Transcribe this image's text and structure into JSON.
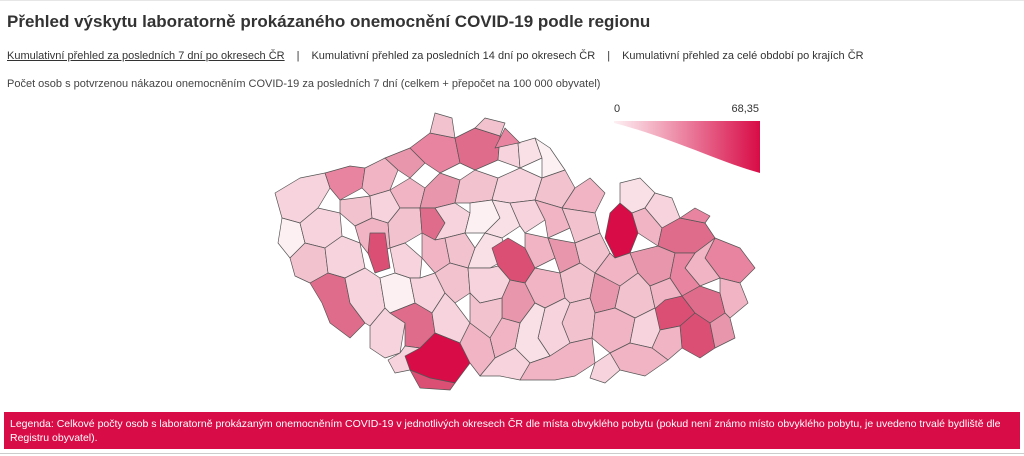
{
  "title": "Přehled výskytu laboratorně prokázaného onemocnění COVID-19 podle regionu",
  "tabs": [
    {
      "label": "Kumulativní přehled za posledních 7 dní po okresech ČR",
      "active": true
    },
    {
      "label": "Kumulativní přehled za posledních 14 dní po okresech ČR",
      "active": false
    },
    {
      "label": "Kumulativní přehled za celé období po krajích ČR",
      "active": false
    }
  ],
  "separator": "|",
  "subtitle": "Počet osob s potvrzenou nákazou onemocněním COVID-19 za posledních 7 dní (celkem + přepočet na 100 000 obyvatel)",
  "scale": {
    "min": "0",
    "max": "68,35",
    "color_low": "#fdf0f3",
    "color_high": "#d80c47"
  },
  "legend": "Legenda: Celkové počty osob s laboratorně prokázaným onemocněním COVID-19 v jednotlivých okresech ČR dle místa obvyklého pobytu (pokud není známo místo obvyklého pobytu, je uvedeno trvalé bydliště dle Registru obyvatel).",
  "colors": {
    "accent": "#d80c47",
    "district_border": "#555555"
  }
}
